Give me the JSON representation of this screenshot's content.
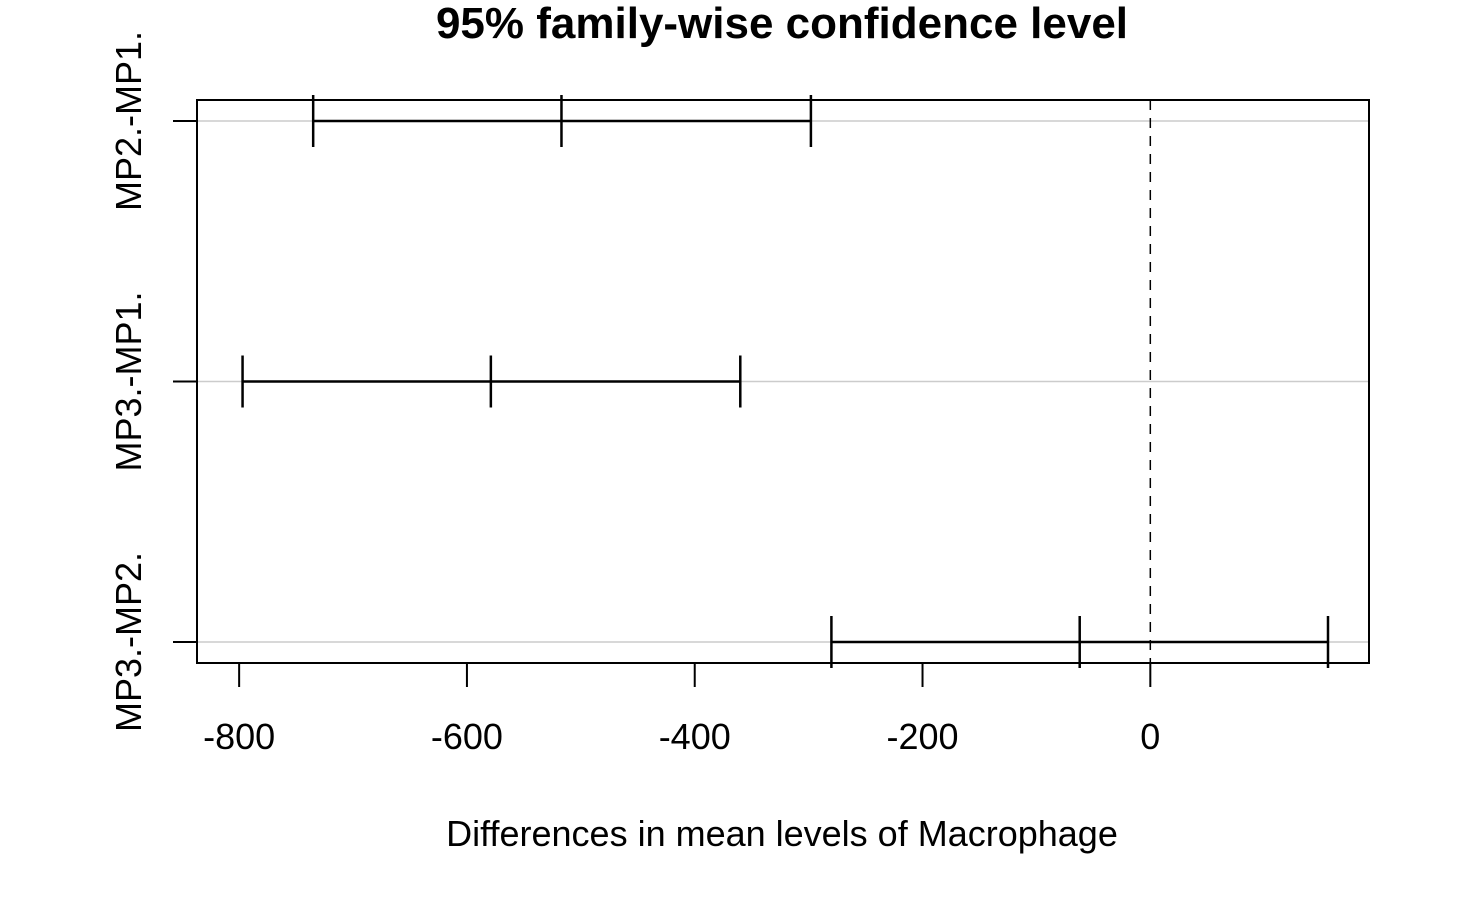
{
  "chart_data": {
    "type": "interval",
    "title": "95% family-wise confidence level",
    "xlabel": "Differences in mean levels of Macrophage",
    "ylabel": "",
    "xlim": [
      -837,
      192
    ],
    "xticks": [
      -800,
      -600,
      -400,
      -200,
      0
    ],
    "xtick_labels": [
      "-800",
      "-600",
      "-400",
      "-200",
      "0"
    ],
    "reference_line": 0,
    "grid": "horizontal",
    "comparisons": [
      {
        "label": "MP2.-MP1.",
        "diff": -517,
        "lwr": -735,
        "upr": -298
      },
      {
        "label": "MP3.-MP1.",
        "diff": -579,
        "lwr": -797,
        "upr": -360
      },
      {
        "label": "MP3.-MP2.",
        "diff": -62,
        "lwr": -280,
        "upr": 156
      }
    ],
    "colors": {
      "line": "#000000",
      "grid": "#cccccc",
      "background": "#ffffff"
    }
  }
}
